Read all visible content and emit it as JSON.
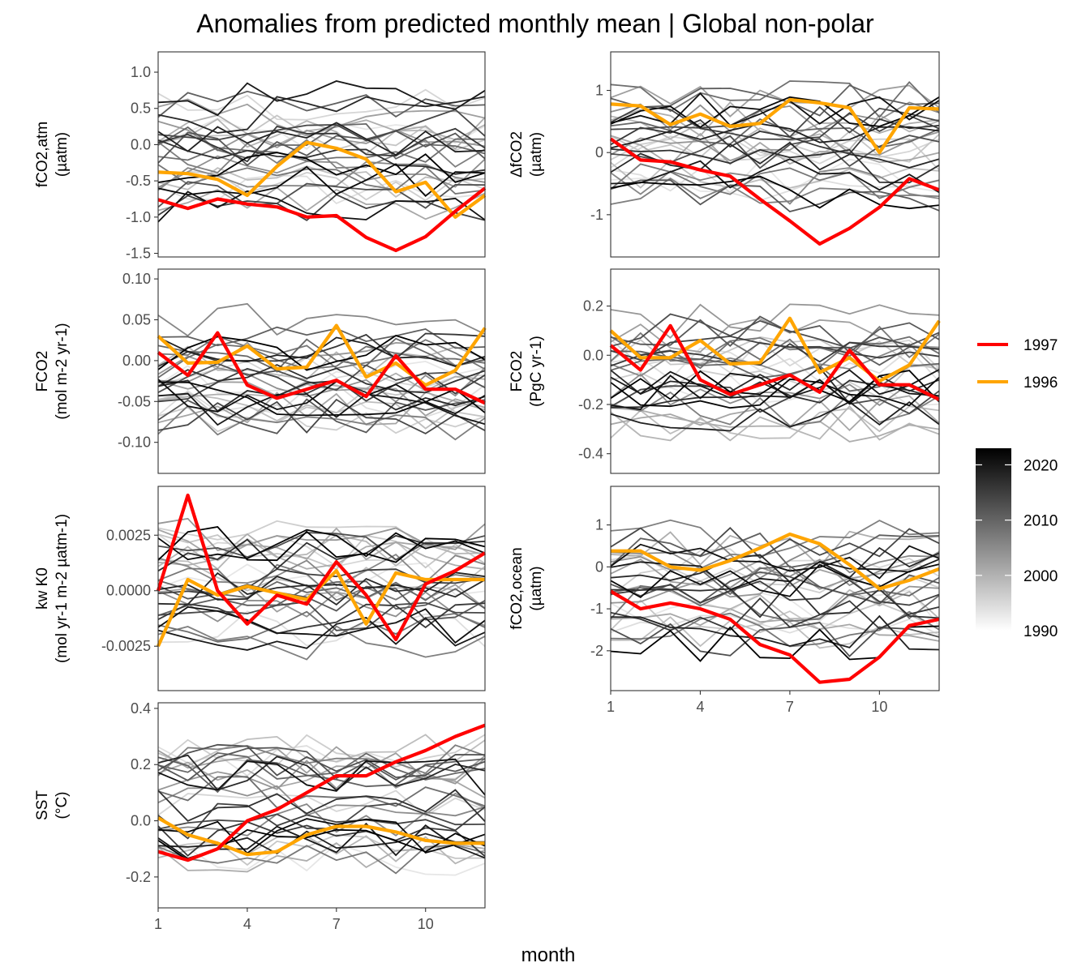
{
  "figure": {
    "title": "Anomalies from predicted monthly mean | Global non-polar",
    "xlabel": "month"
  },
  "legend": {
    "lines": [
      {
        "label": "1997",
        "color": "#ff0000"
      },
      {
        "label": "1996",
        "color": "#ffa500"
      }
    ],
    "colorbar": {
      "min": 1990,
      "max": 2023,
      "ticks": [
        1990,
        2000,
        2010,
        2020
      ],
      "low_color": "#ffffff",
      "high_color": "#000000"
    }
  },
  "chart_data": [
    {
      "type": "line",
      "ylabel_lines": [
        "fCO2,atm",
        "(µatm)"
      ],
      "ylim": [
        -1.55,
        1.28
      ],
      "yticks": [
        -1.5,
        -1.0,
        -0.5,
        0.0,
        0.5,
        1.0
      ],
      "ytick_labels": [
        "-1.5",
        "-1.0",
        "-0.5",
        "0.0",
        "0.5",
        "1.0"
      ],
      "x": [
        1,
        2,
        3,
        4,
        5,
        6,
        7,
        8,
        9,
        10,
        11,
        12
      ],
      "highlight": [
        {
          "name": "1997",
          "values": [
            -0.76,
            -0.88,
            -0.75,
            -0.82,
            -0.86,
            -1.0,
            -0.98,
            -1.28,
            -1.46,
            -1.27,
            -0.92,
            -0.6
          ]
        },
        {
          "name": "1996",
          "values": [
            -0.38,
            -0.4,
            -0.48,
            -0.7,
            -0.3,
            0.03,
            -0.05,
            -0.2,
            -0.65,
            -0.52,
            -1.0,
            -0.7
          ]
        }
      ]
    },
    {
      "type": "line",
      "ylabel_lines": [
        "ΔfCO2",
        "(µatm)"
      ],
      "ylim": [
        -1.68,
        1.62
      ],
      "yticks": [
        -1,
        0,
        1
      ],
      "ytick_labels": [
        "-1",
        "0",
        "1"
      ],
      "x": [
        1,
        2,
        3,
        4,
        5,
        6,
        7,
        8,
        9,
        10,
        11,
        12
      ],
      "highlight": [
        {
          "name": "1997",
          "values": [
            0.22,
            -0.12,
            -0.15,
            -0.28,
            -0.38,
            -0.75,
            -1.1,
            -1.47,
            -1.22,
            -0.88,
            -0.42,
            -0.6
          ]
        },
        {
          "name": "1996",
          "values": [
            0.78,
            0.75,
            0.45,
            0.62,
            0.42,
            0.47,
            0.85,
            0.8,
            0.72,
            0.0,
            0.72,
            0.7
          ]
        }
      ]
    },
    {
      "type": "line",
      "ylabel_lines": [
        "FCO2",
        "(mol m-2 yr-1)"
      ],
      "ylim": [
        -0.138,
        0.112
      ],
      "yticks": [
        -0.1,
        -0.05,
        0.0,
        0.05,
        0.1
      ],
      "ytick_labels": [
        "-0.10",
        "-0.05",
        "0.00",
        "0.05",
        "0.10"
      ],
      "x": [
        1,
        2,
        3,
        4,
        5,
        6,
        7,
        8,
        9,
        10,
        11,
        12
      ],
      "highlight": [
        {
          "name": "1997",
          "values": [
            0.01,
            -0.018,
            0.034,
            -0.03,
            -0.046,
            -0.035,
            -0.024,
            -0.044,
            0.006,
            -0.035,
            -0.035,
            -0.052
          ]
        },
        {
          "name": "1996",
          "values": [
            0.03,
            -0.003,
            -0.002,
            0.018,
            -0.01,
            -0.008,
            0.043,
            -0.02,
            -0.003,
            -0.03,
            -0.012,
            0.04
          ]
        }
      ]
    },
    {
      "type": "line",
      "ylabel_lines": [
        "FCO2",
        "(PgC yr-1)"
      ],
      "ylim": [
        -0.48,
        0.35
      ],
      "yticks": [
        -0.4,
        -0.2,
        0.0,
        0.2
      ],
      "ytick_labels": [
        "-0.4",
        "-0.2",
        "0.0",
        "0.2"
      ],
      "x": [
        1,
        2,
        3,
        4,
        5,
        6,
        7,
        8,
        9,
        10,
        11,
        12
      ],
      "highlight": [
        {
          "name": "1997",
          "values": [
            0.04,
            -0.06,
            0.12,
            -0.1,
            -0.16,
            -0.12,
            -0.08,
            -0.15,
            0.02,
            -0.12,
            -0.12,
            -0.18
          ]
        },
        {
          "name": "1996",
          "values": [
            0.1,
            -0.01,
            -0.01,
            0.06,
            -0.035,
            -0.03,
            0.15,
            -0.07,
            -0.01,
            -0.105,
            -0.04,
            0.14
          ]
        }
      ]
    },
    {
      "type": "line",
      "ylabel_lines": [
        "kw K0",
        "(mol yr-1 m-2 µatm-1)"
      ],
      "ylim": [
        -0.0045,
        0.0047
      ],
      "yticks": [
        -0.0025,
        0.0,
        0.0025
      ],
      "ytick_labels": [
        "-0.0025",
        "0.0000",
        "0.0025"
      ],
      "x": [
        1,
        2,
        3,
        4,
        5,
        6,
        7,
        8,
        9,
        10,
        11,
        12
      ],
      "highlight": [
        {
          "name": "1997",
          "values": [
            0.0,
            0.0043,
            0.0,
            -0.0015,
            -0.0002,
            -0.0006,
            0.0013,
            -0.0002,
            -0.0022,
            0.0003,
            0.0009,
            0.0017
          ]
        },
        {
          "name": "1996",
          "values": [
            -0.0025,
            0.0005,
            -0.0002,
            0.0002,
            -0.0001,
            -0.0004,
            0.0009,
            -0.0015,
            0.0008,
            0.0005,
            0.0005,
            0.0005
          ]
        }
      ]
    },
    {
      "type": "line",
      "ylabel_lines": [
        "fCO2,ocean",
        "(µatm)"
      ],
      "ylim": [
        -2.95,
        1.92
      ],
      "yticks": [
        -2,
        -1,
        0,
        1
      ],
      "ytick_labels": [
        "-2",
        "-1",
        "0",
        "1"
      ],
      "xticks": [
        1,
        4,
        7,
        10
      ],
      "x": [
        1,
        2,
        3,
        4,
        5,
        6,
        7,
        8,
        9,
        10,
        11,
        12
      ],
      "highlight": [
        {
          "name": "1997",
          "values": [
            -0.58,
            -1.0,
            -0.86,
            -1.0,
            -1.25,
            -1.85,
            -2.1,
            -2.75,
            -2.68,
            -2.15,
            -1.4,
            -1.25
          ]
        },
        {
          "name": "1996",
          "values": [
            0.38,
            0.38,
            0.0,
            -0.08,
            0.15,
            0.45,
            0.78,
            0.55,
            0.05,
            -0.52,
            -0.32,
            -0.05
          ]
        }
      ]
    },
    {
      "type": "line",
      "ylabel_lines": [
        "SST",
        "(°C)"
      ],
      "ylim": [
        -0.31,
        0.42
      ],
      "yticks": [
        -0.2,
        0.0,
        0.2,
        0.4
      ],
      "ytick_labels": [
        "-0.2",
        "0.0",
        "0.2",
        "0.4"
      ],
      "xticks": [
        1,
        4,
        7,
        10
      ],
      "x": [
        1,
        2,
        3,
        4,
        5,
        6,
        7,
        8,
        9,
        10,
        11,
        12
      ],
      "highlight": [
        {
          "name": "1997",
          "values": [
            -0.11,
            -0.14,
            -0.1,
            0.0,
            0.04,
            0.1,
            0.16,
            0.16,
            0.21,
            0.25,
            0.3,
            0.34
          ]
        },
        {
          "name": "1996",
          "values": [
            0.01,
            -0.05,
            -0.08,
            -0.12,
            -0.11,
            -0.05,
            -0.02,
            -0.02,
            -0.04,
            -0.07,
            -0.08,
            -0.08
          ]
        }
      ]
    }
  ]
}
